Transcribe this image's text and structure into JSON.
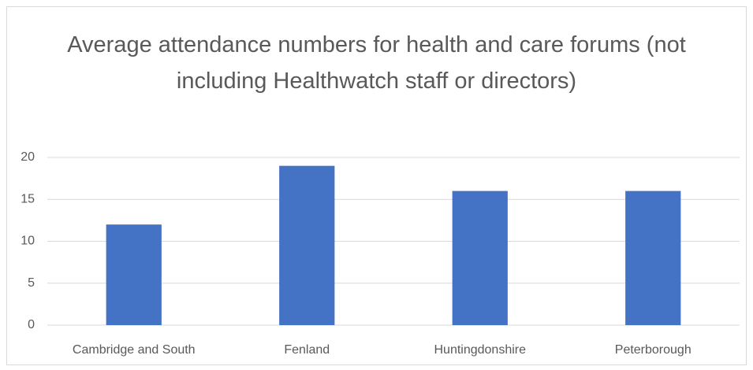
{
  "chart_data": {
    "type": "bar",
    "title": "Average attendance numbers for health and care forums (not including Healthwatch staff or directors)",
    "categories": [
      "Cambridge and South",
      "Fenland",
      "Huntingdonshire",
      "Peterborough"
    ],
    "values": [
      12,
      19,
      16,
      16
    ],
    "color": "#4472c4",
    "ylim": [
      0,
      20
    ],
    "yticks": [
      0,
      5,
      10,
      15,
      20
    ],
    "grid": true
  }
}
